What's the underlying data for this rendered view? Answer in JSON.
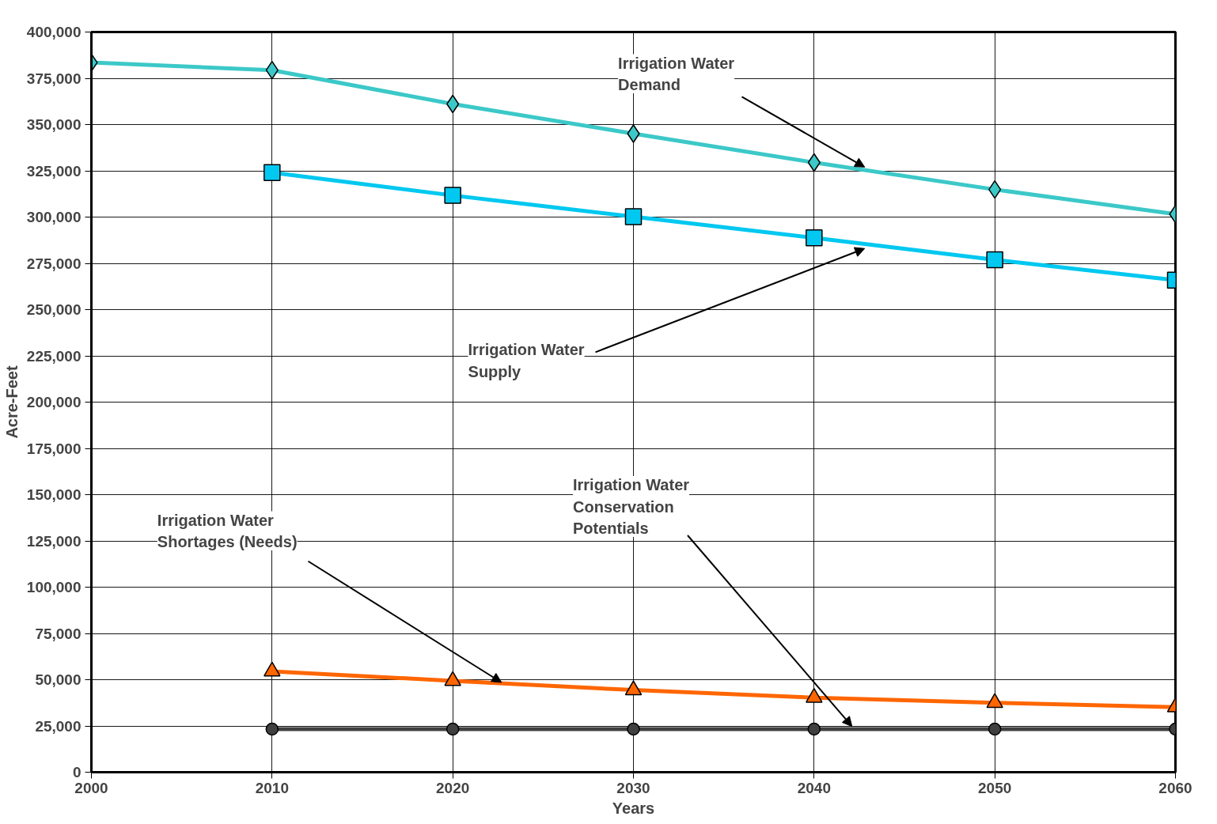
{
  "chart_data": {
    "type": "line",
    "xlabel": "Years",
    "ylabel": "Acre-Feet",
    "x": [
      2000,
      2010,
      2020,
      2030,
      2040,
      2050,
      2060
    ],
    "series": [
      {
        "color": "#3cc8c8",
        "marker": "diamond",
        "values": [
          383500,
          379400,
          361100,
          345100,
          329500,
          314900,
          301600
        ]
      },
      {
        "color": "#00c8f0",
        "marker": "square",
        "values": [
          null,
          324000,
          311700,
          300200,
          288800,
          276900,
          265900
        ]
      },
      {
        "color": "#ff6600",
        "marker": "triangle",
        "values": [
          null,
          54500,
          49400,
          44400,
          40300,
          37500,
          35200
        ]
      },
      {
        "color": "#404040",
        "marker": "circle",
        "values": [
          null,
          23300,
          23300,
          23300,
          23300,
          23300,
          23300
        ]
      }
    ],
    "annotations": [
      {
        "text": "Irrigation Water\nDemand",
        "x": 2042.8,
        "y": 327000
      },
      {
        "text": "Irrigation Water\nSupply",
        "x": 2042.8,
        "y": 283000
      },
      {
        "text": "Irrigation Water\nShortages (Needs)",
        "x": 2022.7,
        "y": 48500
      },
      {
        "text": "Irrigation Water\nConservation\nPotentials",
        "x": 2042.1,
        "y": 24700
      }
    ],
    "xlim": [
      2000,
      2060
    ],
    "xticks": [
      2000,
      2010,
      2020,
      2030,
      2040,
      2050,
      2060
    ],
    "ylim": [
      0,
      400000
    ],
    "yticks": [
      {
        "value": 0,
        "label": "0"
      },
      {
        "value": 25000,
        "label": "25,000"
      },
      {
        "value": 50000,
        "label": "50,000"
      },
      {
        "value": 75000,
        "label": "75,000"
      },
      {
        "value": 100000,
        "label": "100,000"
      },
      {
        "value": 125000,
        "label": "125,000"
      },
      {
        "value": 150000,
        "label": "150,000"
      },
      {
        "value": 175000,
        "label": "175,000"
      },
      {
        "value": 200000,
        "label": "200,000"
      },
      {
        "value": 225000,
        "label": "225,000"
      },
      {
        "value": 250000,
        "label": "250,000"
      },
      {
        "value": 275000,
        "label": "275,000"
      },
      {
        "value": 300000,
        "label": "300,000"
      },
      {
        "value": 325000,
        "label": "325,000"
      },
      {
        "value": 350000,
        "label": "350,000"
      },
      {
        "value": 375000,
        "label": "375,000"
      },
      {
        "value": 400000,
        "label": "400,000"
      }
    ],
    "grid": true
  }
}
